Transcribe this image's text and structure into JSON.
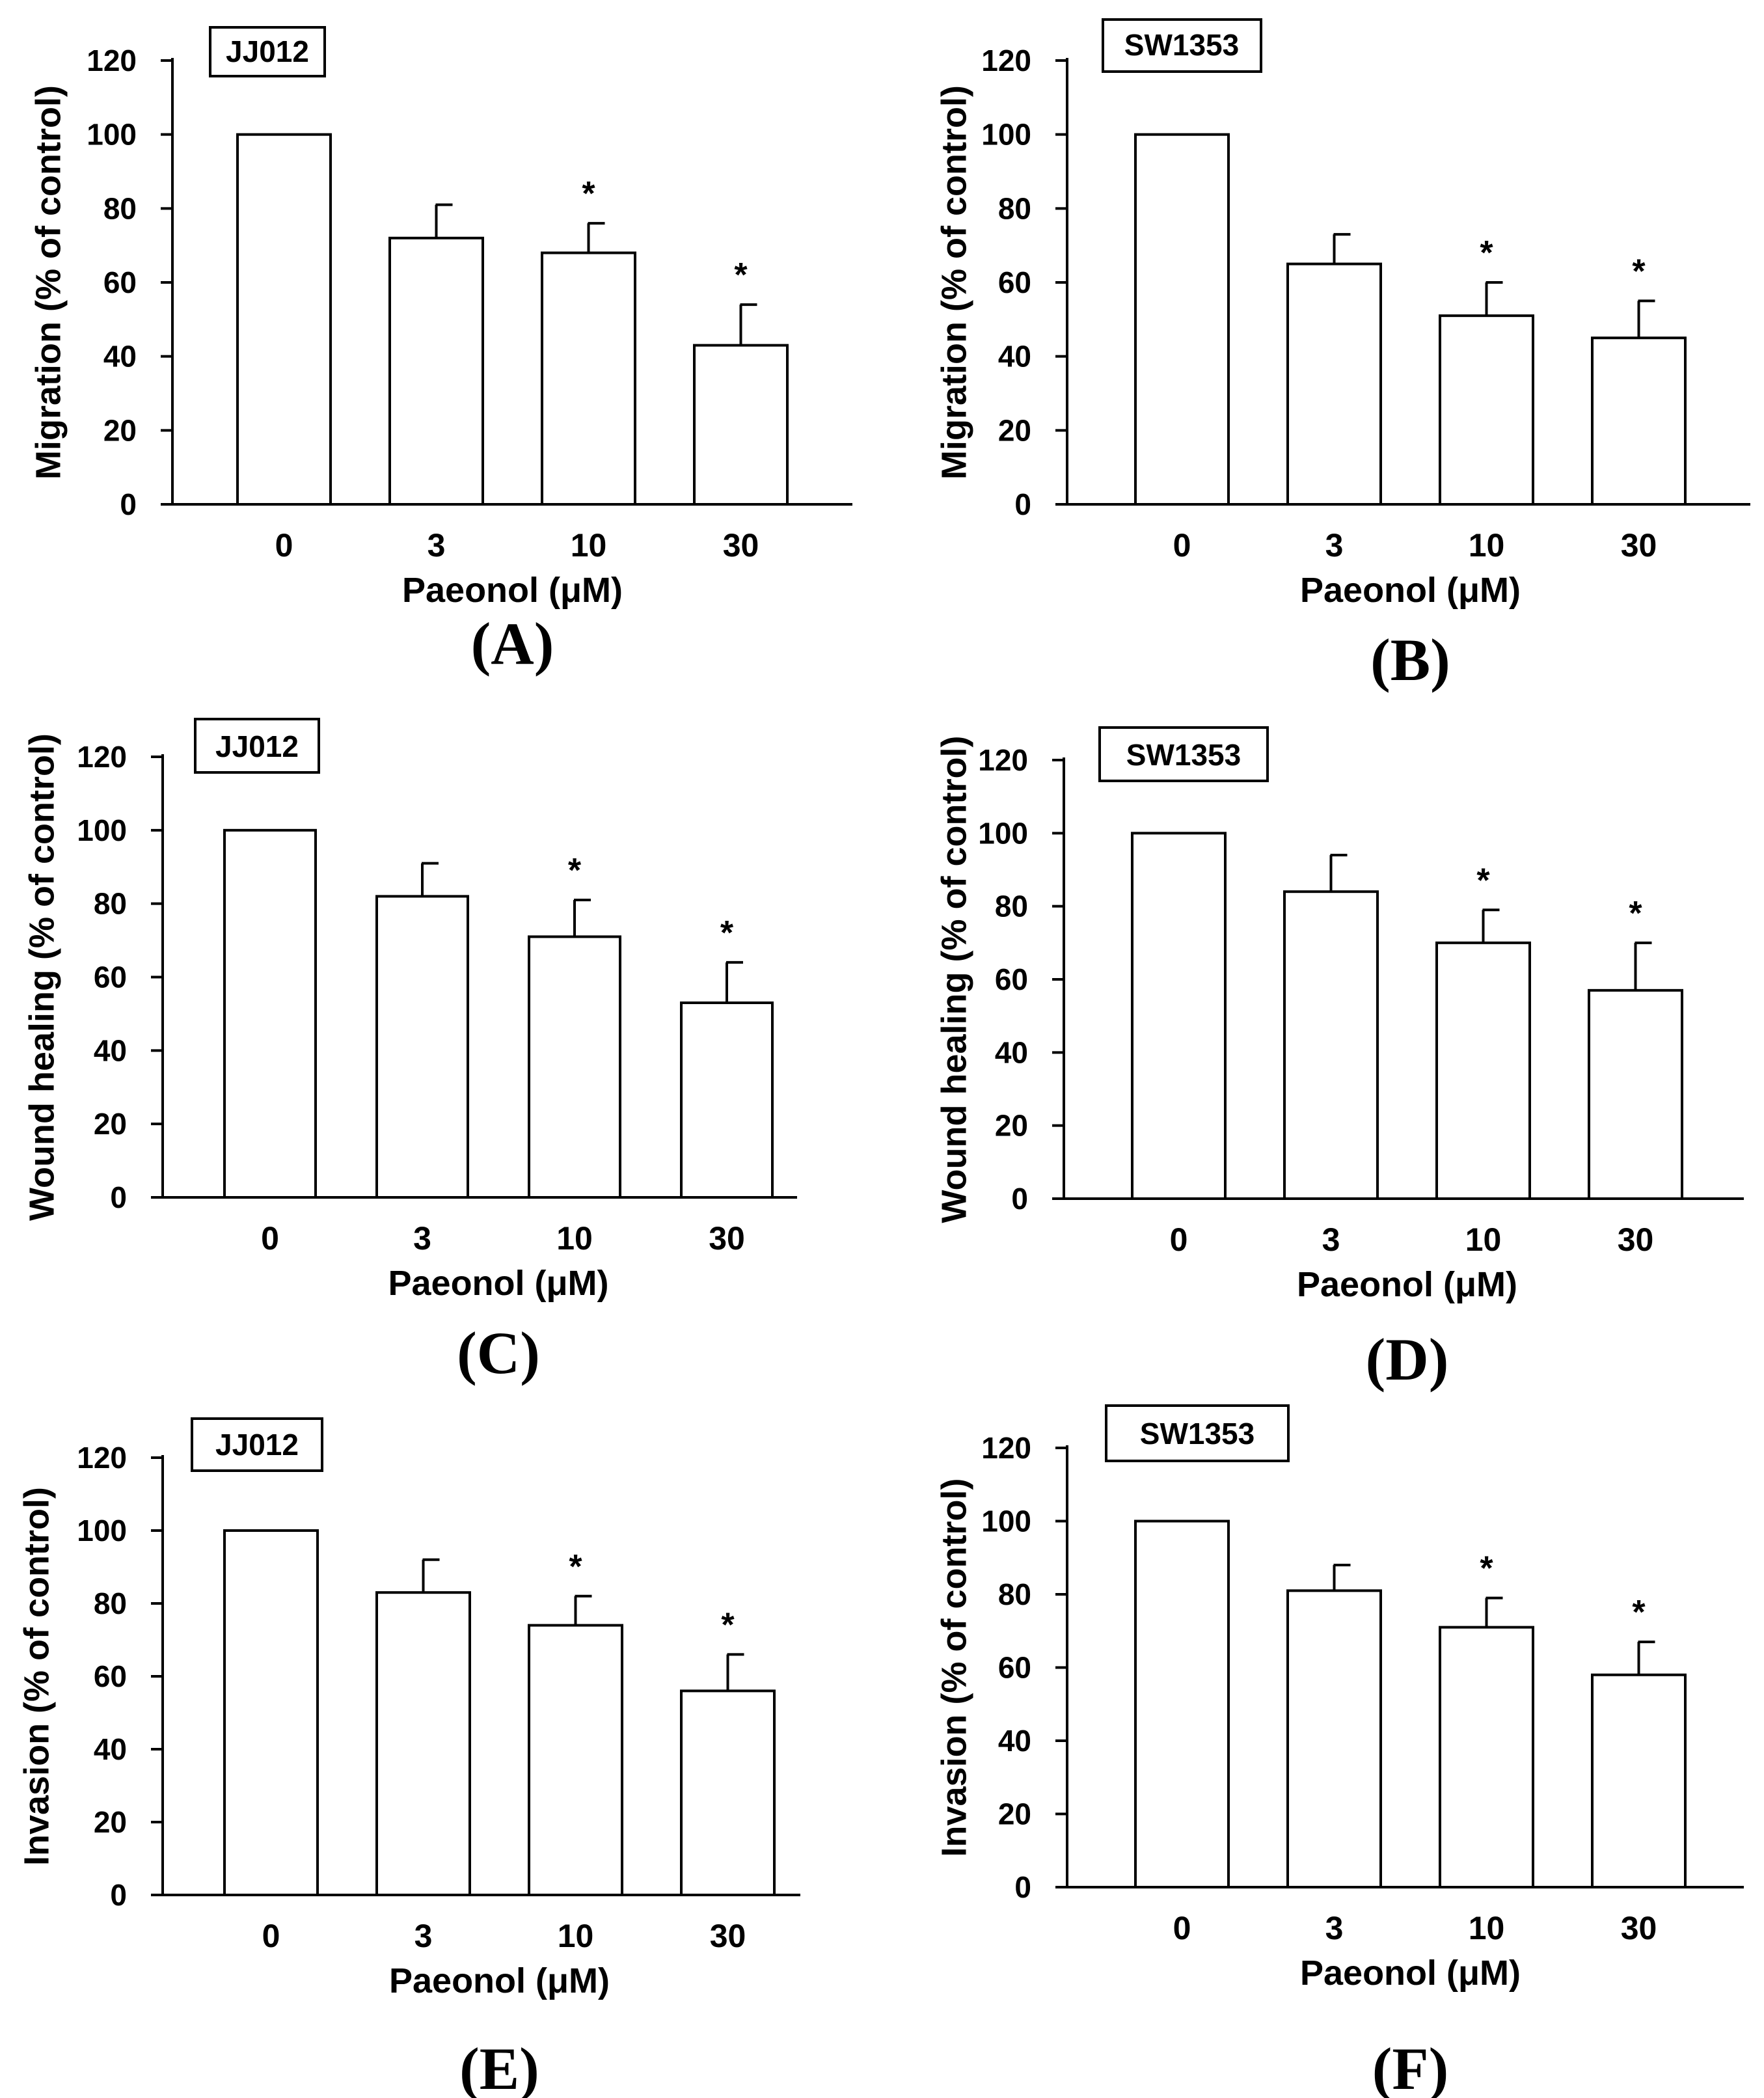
{
  "chart_data": [
    {
      "type": "bar",
      "panel_label": "(A)",
      "cell_line": "JJ012",
      "title": "",
      "categories": [
        "0",
        "3",
        "10",
        "30"
      ],
      "values": [
        100,
        72,
        68,
        43
      ],
      "errors": [
        0,
        9,
        8,
        11
      ],
      "significance": [
        "",
        "",
        "*",
        "*"
      ],
      "xlabel": "Paeonol (μM)",
      "ylabel": "Migration (% of control)",
      "ylim": [
        0,
        120
      ],
      "yticks": [
        0,
        20,
        40,
        60,
        80,
        100,
        120
      ]
    },
    {
      "type": "bar",
      "panel_label": "(B)",
      "cell_line": "SW1353",
      "title": "",
      "categories": [
        "0",
        "3",
        "10",
        "30"
      ],
      "values": [
        100,
        65,
        51,
        45
      ],
      "errors": [
        0,
        8,
        9,
        10
      ],
      "significance": [
        "",
        "",
        "*",
        "*"
      ],
      "xlabel": "Paeonol (μM)",
      "ylabel": "Migration (% of control)",
      "ylim": [
        0,
        120
      ],
      "yticks": [
        0,
        20,
        40,
        60,
        80,
        100,
        120
      ]
    },
    {
      "type": "bar",
      "panel_label": "(C)",
      "cell_line": "JJ012",
      "title": "",
      "categories": [
        "0",
        "3",
        "10",
        "30"
      ],
      "values": [
        100,
        82,
        71,
        53
      ],
      "errors": [
        0,
        9,
        10,
        11
      ],
      "significance": [
        "",
        "",
        "*",
        "*"
      ],
      "xlabel": "Paeonol (μM)",
      "ylabel": "Wound healing  (% of control)",
      "ylim": [
        0,
        120
      ],
      "yticks": [
        0,
        20,
        40,
        60,
        80,
        100,
        120
      ]
    },
    {
      "type": "bar",
      "panel_label": "(D)",
      "cell_line": "SW1353",
      "title": "",
      "categories": [
        "0",
        "3",
        "10",
        "30"
      ],
      "values": [
        100,
        84,
        70,
        57
      ],
      "errors": [
        0,
        10,
        9,
        13
      ],
      "significance": [
        "",
        "",
        "*",
        "*"
      ],
      "xlabel": "Paeonol (μM)",
      "ylabel": "Wound healing  (% of control)",
      "ylim": [
        0,
        120
      ],
      "yticks": [
        0,
        20,
        40,
        60,
        80,
        100,
        120
      ]
    },
    {
      "type": "bar",
      "panel_label": "(E)",
      "cell_line": "JJ012",
      "title": "",
      "categories": [
        "0",
        "3",
        "10",
        "30"
      ],
      "values": [
        100,
        83,
        74,
        56
      ],
      "errors": [
        0,
        9,
        8,
        10
      ],
      "significance": [
        "",
        "",
        "*",
        "*"
      ],
      "xlabel": "Paeonol (μM)",
      "ylabel": "Invasion (% of control)",
      "ylim": [
        0,
        120
      ],
      "yticks": [
        0,
        20,
        40,
        60,
        80,
        100,
        120
      ]
    },
    {
      "type": "bar",
      "panel_label": "(F)",
      "cell_line": "SW1353",
      "title": "",
      "categories": [
        "0",
        "3",
        "10",
        "30"
      ],
      "values": [
        100,
        81,
        71,
        58
      ],
      "errors": [
        0,
        7,
        8,
        9
      ],
      "significance": [
        "",
        "",
        "*",
        "*"
      ],
      "xlabel": "Paeonol (μM)",
      "ylabel": "Invasion (% of control)",
      "ylim": [
        0,
        120
      ],
      "yticks": [
        0,
        20,
        40,
        60,
        80,
        100,
        120
      ]
    }
  ]
}
